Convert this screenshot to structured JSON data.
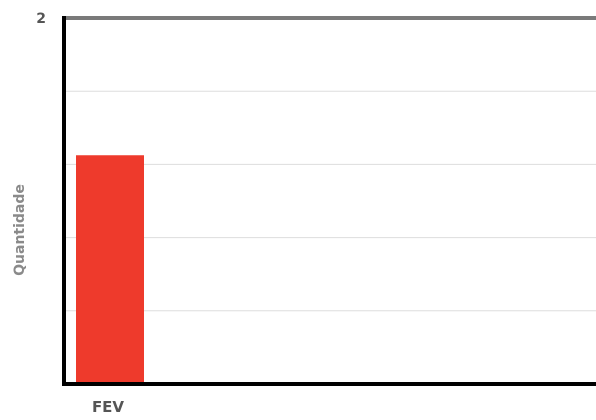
{
  "chart_data": {
    "type": "bar",
    "categories": [
      "FEV"
    ],
    "series": [
      {
        "values": [
          1.25
        ]
      }
    ],
    "ylim": [
      0,
      2
    ],
    "y_tick_labels": [
      {
        "value": 2,
        "label": "2"
      }
    ],
    "ylabel": "Quantidade",
    "xlabel": "",
    "grid": true,
    "gridline_count": 5,
    "colors": {
      "bar": "#ee3a2c",
      "axis": "#000000",
      "top_line": "#7a7a7a",
      "grid": "#dddddd",
      "text": "#555555"
    }
  }
}
